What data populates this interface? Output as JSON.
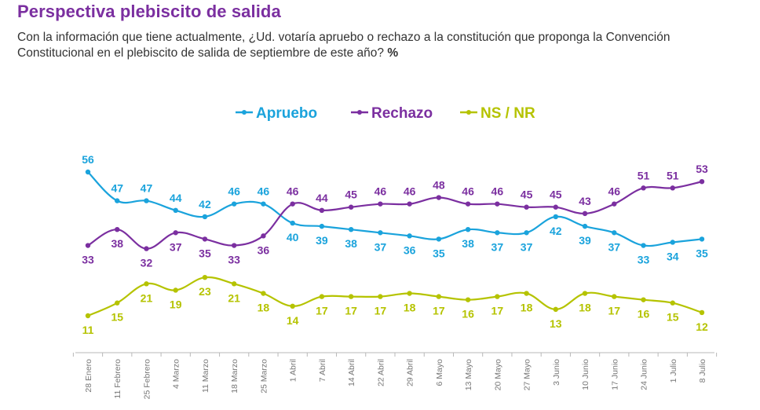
{
  "header": {
    "title": "Perspectiva plebiscito de salida",
    "subtitle": "Con la información que tiene actualmente, ¿Ud. votaría apruebo o rechazo a la constitución que proponga la Convención Constitucional en el plebiscito de salida de septiembre de este año?",
    "unit": "%"
  },
  "chart_data": {
    "type": "line",
    "categories": [
      "28 Enero",
      "11 Febrero",
      "25 Febrero",
      "4 Marzo",
      "11 Marzo",
      "18 Marzo",
      "25 Marzo",
      "1 Abril",
      "7 Abril",
      "14 Abril",
      "22 Abril",
      "29 Abril",
      "6 Mayo",
      "13 Mayo",
      "20 Mayo",
      "27 Mayo",
      "3 Junio",
      "10 Junio",
      "17 Junio",
      "24 Junio",
      "1 Julio",
      "8 Julio"
    ],
    "series": [
      {
        "name": "Apruebo",
        "color": "#1aa3dc",
        "values": [
          56,
          47,
          47,
          44,
          42,
          46,
          46,
          40,
          39,
          38,
          37,
          36,
          35,
          38,
          37,
          37,
          42,
          39,
          37,
          33,
          34,
          35
        ]
      },
      {
        "name": "Rechazo",
        "color": "#7b2fa0",
        "values": [
          33,
          38,
          32,
          37,
          35,
          33,
          36,
          46,
          44,
          45,
          46,
          46,
          48,
          46,
          46,
          45,
          45,
          43,
          46,
          51,
          51,
          53
        ]
      },
      {
        "name": "NS / NR",
        "color": "#b5c300",
        "values": [
          11,
          15,
          21,
          19,
          23,
          21,
          18,
          14,
          17,
          17,
          17,
          18,
          17,
          16,
          17,
          18,
          13,
          18,
          17,
          16,
          15,
          12
        ]
      }
    ],
    "legend_position": "top-center",
    "grid": false
  }
}
